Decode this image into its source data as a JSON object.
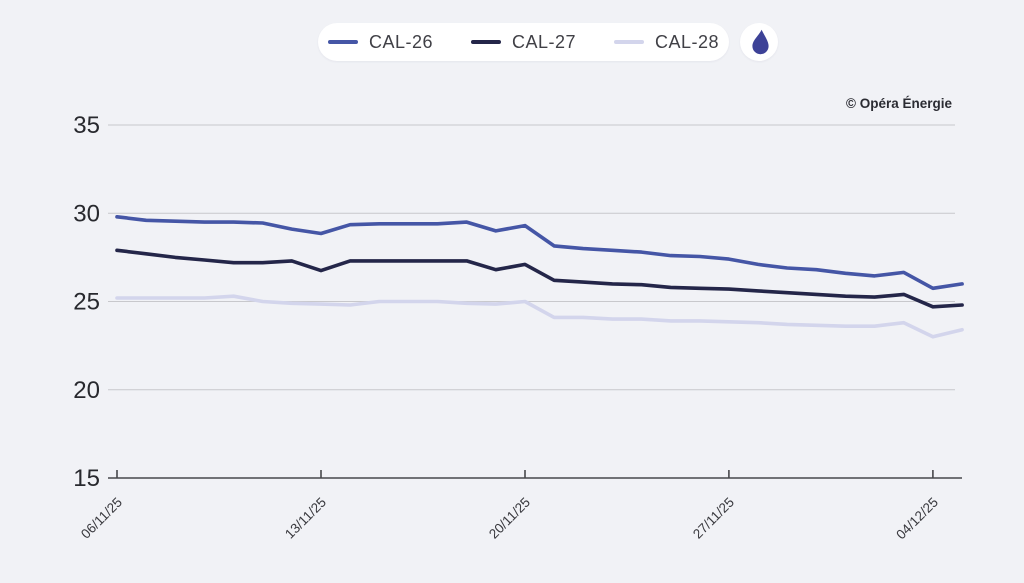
{
  "page": {
    "background": "#f1f2f6"
  },
  "legend": {
    "items": [
      {
        "label": "CAL-26",
        "color": "#4556a6"
      },
      {
        "label": "CAL-27",
        "color": "#242649"
      },
      {
        "label": "CAL-28",
        "color": "#d3d5ec"
      }
    ],
    "icon": "flame-icon",
    "icon_color": "#3d4297"
  },
  "copyright": "© Opéra Énergie",
  "chart_data": {
    "type": "line",
    "x": [
      "06/11/25",
      "07/11/25",
      "08/11/25",
      "09/11/25",
      "10/11/25",
      "11/11/25",
      "12/11/25",
      "13/11/25",
      "14/11/25",
      "15/11/25",
      "16/11/25",
      "17/11/25",
      "18/11/25",
      "19/11/25",
      "20/11/25",
      "21/11/25",
      "22/11/25",
      "23/11/25",
      "24/11/25",
      "25/11/25",
      "26/11/25",
      "27/11/25",
      "28/11/25",
      "29/11/25",
      "30/11/25",
      "01/12/25",
      "02/12/25",
      "03/12/25",
      "04/12/25",
      "05/12/25"
    ],
    "series": [
      {
        "name": "CAL-26",
        "color": "#4556a6",
        "values": [
          29.8,
          29.6,
          29.55,
          29.5,
          29.5,
          29.45,
          29.1,
          28.85,
          29.35,
          29.4,
          29.4,
          29.4,
          29.5,
          29.0,
          29.3,
          28.15,
          28.0,
          27.9,
          27.8,
          27.6,
          27.55,
          27.4,
          27.1,
          26.9,
          26.8,
          26.6,
          26.45,
          26.65,
          25.75,
          26.0
        ]
      },
      {
        "name": "CAL-27",
        "color": "#242649",
        "values": [
          27.9,
          27.7,
          27.5,
          27.35,
          27.2,
          27.2,
          27.3,
          26.75,
          27.3,
          27.3,
          27.3,
          27.3,
          27.3,
          26.8,
          27.1,
          26.2,
          26.1,
          26.0,
          25.95,
          25.8,
          25.75,
          25.7,
          25.6,
          25.5,
          25.4,
          25.3,
          25.25,
          25.4,
          24.7,
          24.8
        ]
      },
      {
        "name": "CAL-28",
        "color": "#d3d5ec",
        "values": [
          25.2,
          25.2,
          25.2,
          25.2,
          25.3,
          25.0,
          24.9,
          24.85,
          24.8,
          25.0,
          25.0,
          25.0,
          24.9,
          24.85,
          25.0,
          24.1,
          24.1,
          24.0,
          24.0,
          23.9,
          23.9,
          23.85,
          23.8,
          23.7,
          23.65,
          23.6,
          23.6,
          23.8,
          23.0,
          23.4
        ]
      }
    ],
    "ylim": [
      15,
      35
    ],
    "yticks": [
      35,
      30,
      25,
      20,
      15
    ],
    "xtick_labels": [
      "06/11/25",
      "13/11/25",
      "20/11/25",
      "27/11/25",
      "04/12/25"
    ],
    "xtick_indices": [
      0,
      7,
      14,
      21,
      28
    ],
    "grid": "horizontal",
    "legend_position": "top-center",
    "colors": {
      "grid": "#c8c8cc",
      "axis": "#47474b",
      "ytick_text": "#28292e",
      "xtick_text": "#38383d"
    }
  }
}
